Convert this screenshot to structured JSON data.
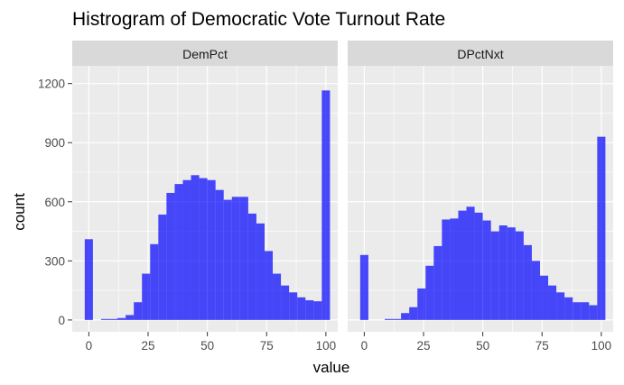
{
  "chart_data": {
    "type": "bar",
    "title": "Histrogram of Democratic Vote Turnout Rate",
    "xlabel": "value",
    "ylabel": "count",
    "xlim": [
      -7,
      105
    ],
    "ylim": [
      -60,
      1290
    ],
    "x_ticks": [
      0,
      25,
      50,
      75,
      100
    ],
    "y_ticks": [
      0,
      300,
      600,
      900,
      1200
    ],
    "grid": true,
    "fill_color": "#0000ff",
    "fill_opacity": 0.7,
    "panel_background": "#ebebeb",
    "strip_background": "#d9d9d9",
    "bin_width": 3.448,
    "bin_centers": [
      0,
      3.448,
      6.897,
      10.345,
      13.793,
      17.241,
      20.69,
      24.138,
      27.586,
      31.034,
      34.483,
      37.931,
      41.379,
      44.828,
      48.276,
      51.724,
      55.172,
      58.621,
      62.069,
      65.517,
      68.966,
      72.414,
      75.862,
      79.31,
      82.759,
      86.207,
      89.655,
      93.103,
      96.552,
      100
    ],
    "panels": [
      {
        "label": "DemPct",
        "values": [
          410,
          0,
          5,
          5,
          10,
          25,
          90,
          235,
          385,
          535,
          645,
          690,
          710,
          735,
          720,
          710,
          660,
          610,
          625,
          625,
          540,
          490,
          350,
          235,
          175,
          140,
          115,
          100,
          95,
          1165
        ]
      },
      {
        "label": "DPctNxt",
        "values": [
          330,
          0,
          0,
          5,
          5,
          35,
          65,
          160,
          275,
          375,
          510,
          515,
          555,
          575,
          545,
          505,
          450,
          480,
          470,
          450,
          380,
          300,
          225,
          175,
          140,
          115,
          90,
          90,
          75,
          930
        ]
      }
    ]
  }
}
